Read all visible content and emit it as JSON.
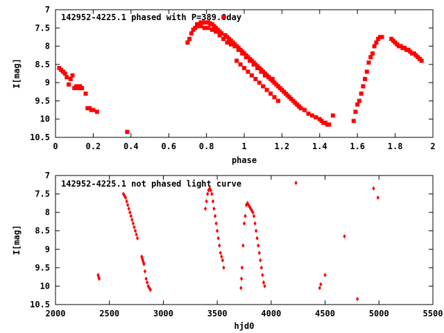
{
  "colors": {
    "marker": "#ff0000",
    "axis": "#000000",
    "background": "#ffffff"
  },
  "chart_data": [
    {
      "type": "scatter",
      "title": "142952-4225.1 phased with P=389.0day",
      "xlabel": "phase",
      "ylabel": "I[mag]",
      "xlim": [
        0,
        2
      ],
      "ylim": [
        7,
        10.5
      ],
      "y_inverted": true,
      "x_ticks": [
        "0",
        "0.2",
        "0.4",
        "0.6",
        "0.8",
        "1",
        "1.2",
        "1.4",
        "1.6",
        "1.8",
        "2"
      ],
      "y_ticks": [
        "7",
        "7.5",
        "8",
        "8.5",
        "9",
        "9.5",
        "10",
        "10.5"
      ],
      "marker": "filled-square",
      "grid": false,
      "series": [
        {
          "x": [
            0.02,
            0.03,
            0.04,
            0.05,
            0.06,
            0.07,
            0.08,
            0.09,
            0.1,
            0.11,
            0.12,
            0.13,
            0.14,
            0.16,
            0.17,
            0.18,
            0.19,
            0.2,
            0.22,
            0.38,
            0.7,
            0.71,
            0.72,
            0.73,
            0.74,
            0.75,
            0.76,
            0.77,
            0.78,
            0.79,
            0.8,
            0.81,
            0.82,
            0.83,
            0.84,
            0.85,
            0.86,
            0.87,
            0.88,
            0.89,
            0.9,
            0.91,
            0.92,
            0.93,
            0.94,
            0.95,
            0.96,
            0.97,
            0.98,
            0.99,
            1.0,
            1.01,
            1.02,
            1.03,
            1.04,
            1.05,
            1.06,
            1.07,
            1.08,
            1.09,
            1.1,
            1.11,
            1.12,
            1.13,
            1.14,
            1.15,
            1.16,
            1.17,
            1.18,
            1.19,
            1.2,
            1.21,
            1.22,
            1.23,
            1.24,
            1.25,
            1.26,
            1.27,
            1.28,
            1.29,
            1.3,
            1.32,
            1.34,
            1.36,
            1.38,
            1.4,
            1.41,
            1.42,
            1.43,
            1.44,
            1.45,
            1.47,
            0.75,
            0.77,
            0.79,
            0.81,
            0.83,
            0.85,
            0.87,
            0.89,
            0.91,
            0.93,
            0.95,
            0.97,
            0.99,
            1.01,
            1.03,
            1.05,
            1.07,
            1.09,
            1.11,
            1.13,
            1.15,
            0.96,
            0.98,
            1.0,
            1.02,
            1.04,
            1.06,
            1.08,
            1.1,
            1.12,
            1.14,
            1.16,
            1.18,
            1.58,
            1.59,
            1.6,
            1.61,
            1.62,
            1.63,
            1.64,
            1.65,
            1.66,
            1.67,
            1.68,
            1.69,
            1.7,
            1.71,
            1.72,
            1.73,
            1.78,
            1.79,
            1.8,
            1.81,
            1.82,
            1.83,
            1.84,
            1.85,
            1.86,
            1.87,
            1.88,
            1.89,
            1.9,
            1.91,
            1.92,
            1.93,
            1.94
          ],
          "y": [
            8.6,
            8.65,
            8.7,
            8.75,
            8.85,
            9.05,
            8.9,
            8.8,
            9.15,
            9.1,
            9.15,
            9.1,
            9.15,
            9.3,
            9.7,
            9.7,
            9.75,
            9.75,
            9.8,
            10.35,
            7.9,
            7.8,
            7.65,
            7.55,
            7.5,
            7.45,
            7.4,
            7.35,
            7.35,
            7.35,
            7.35,
            7.35,
            7.38,
            7.4,
            7.45,
            7.5,
            7.55,
            7.6,
            7.65,
            7.2,
            7.7,
            7.75,
            7.8,
            7.85,
            7.9,
            7.95,
            8.0,
            8.05,
            8.1,
            8.15,
            8.2,
            8.25,
            8.3,
            8.35,
            8.4,
            8.45,
            8.5,
            8.55,
            8.6,
            8.65,
            8.7,
            8.75,
            8.8,
            8.85,
            8.9,
            8.95,
            9.0,
            9.05,
            9.1,
            9.15,
            9.2,
            9.25,
            9.3,
            9.35,
            9.4,
            9.45,
            9.5,
            9.55,
            9.6,
            9.65,
            9.7,
            9.75,
            9.85,
            9.9,
            9.95,
            10.0,
            10.05,
            10.1,
            10.1,
            10.15,
            10.15,
            9.9,
            7.4,
            7.45,
            7.5,
            7.5,
            7.55,
            7.6,
            7.7,
            7.8,
            7.9,
            7.95,
            8.0,
            8.1,
            8.2,
            8.3,
            8.4,
            8.5,
            8.6,
            8.7,
            8.8,
            8.85,
            8.9,
            8.4,
            8.5,
            8.6,
            8.7,
            8.8,
            8.9,
            9.0,
            9.1,
            9.2,
            9.3,
            9.4,
            9.5,
            10.05,
            9.8,
            9.6,
            9.5,
            9.3,
            9.1,
            8.9,
            8.7,
            8.45,
            8.3,
            8.2,
            8.0,
            7.9,
            7.8,
            7.75,
            7.75,
            7.8,
            7.85,
            7.9,
            7.95,
            8.0,
            8.0,
            8.05,
            8.05,
            8.1,
            8.1,
            8.15,
            8.2,
            8.2,
            8.25,
            8.3,
            8.35,
            8.4
          ]
        }
      ]
    },
    {
      "type": "scatter",
      "title": "142952-4225.1 not phased light curve",
      "xlabel": "hjd0",
      "ylabel": "I[mag]",
      "xlim": [
        2000,
        5500
      ],
      "ylim": [
        7,
        10.5
      ],
      "y_inverted": true,
      "x_ticks": [
        "2000",
        "2500",
        "3000",
        "3500",
        "4000",
        "4500",
        "5000",
        "5500"
      ],
      "y_ticks": [
        "7",
        "7.5",
        "8",
        "8.5",
        "9",
        "9.5",
        "10",
        "10.5"
      ],
      "marker": "filled-diamond",
      "grid": false,
      "series": [
        {
          "x": [
            2395,
            2400,
            2405,
            2630,
            2640,
            2650,
            2660,
            2670,
            2680,
            2690,
            2700,
            2710,
            2720,
            2730,
            2740,
            2750,
            2760,
            2800,
            2805,
            2810,
            2815,
            2820,
            2830,
            2840,
            2850,
            2860,
            2870,
            2880,
            3390,
            3400,
            3410,
            3420,
            3430,
            3440,
            3450,
            3460,
            3470,
            3480,
            3490,
            3500,
            3510,
            3520,
            3530,
            3540,
            3550,
            3560,
            3720,
            3725,
            3730,
            3740,
            3750,
            3760,
            3770,
            3780,
            3790,
            3800,
            3810,
            3820,
            3830,
            3840,
            3850,
            3860,
            3870,
            3880,
            3890,
            3900,
            3910,
            3920,
            3930,
            3940,
            4230,
            4450,
            4460,
            4500,
            4680,
            4800,
            4950,
            4990
          ],
          "y": [
            9.7,
            9.75,
            9.8,
            7.5,
            7.55,
            7.6,
            7.7,
            7.8,
            7.9,
            8.0,
            8.1,
            8.2,
            8.3,
            8.4,
            8.5,
            8.6,
            8.7,
            9.2,
            9.25,
            9.3,
            9.35,
            9.4,
            9.6,
            9.8,
            9.9,
            10.0,
            10.05,
            10.1,
            7.9,
            7.7,
            7.5,
            7.4,
            7.35,
            7.4,
            7.5,
            7.7,
            7.9,
            8.1,
            8.3,
            8.5,
            8.7,
            8.9,
            9.1,
            9.2,
            9.3,
            9.5,
            10.05,
            9.8,
            9.5,
            8.9,
            8.3,
            8.1,
            7.8,
            7.75,
            7.8,
            7.85,
            7.9,
            7.95,
            8.0,
            8.1,
            8.3,
            8.5,
            8.7,
            8.9,
            9.1,
            9.3,
            9.5,
            9.7,
            9.9,
            10.0,
            7.2,
            10.05,
            9.95,
            9.7,
            8.65,
            10.35,
            7.35,
            7.6
          ]
        }
      ]
    }
  ]
}
